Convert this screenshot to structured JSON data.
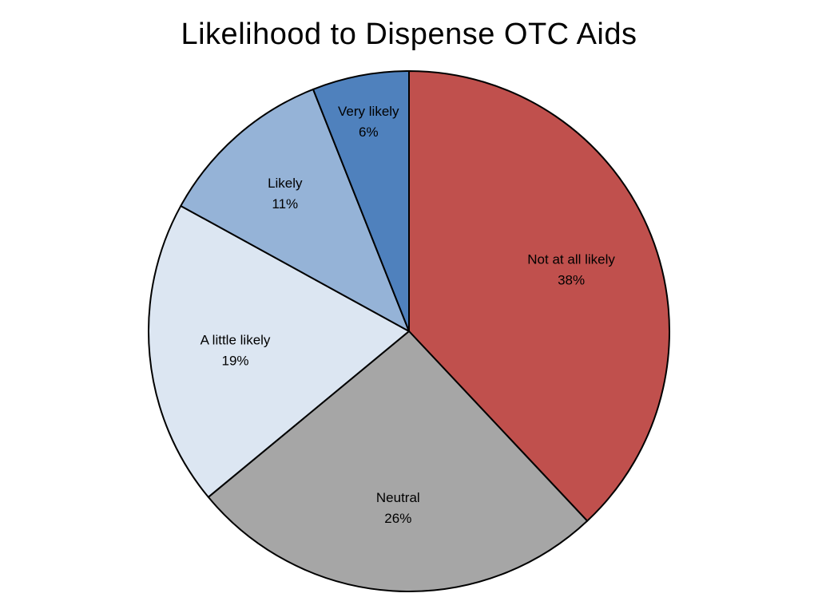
{
  "chart_data": {
    "type": "pie",
    "title": "Likelihood to Dispense OTC Aids",
    "slices": [
      {
        "label": "Not at all likely",
        "value": 38,
        "display": "38%",
        "color": "#C0504D"
      },
      {
        "label": "Neutral",
        "value": 26,
        "display": "26%",
        "color": "#A6A6A6"
      },
      {
        "label": "A little likely",
        "value": 19,
        "display": "19%",
        "color": "#DCE6F2"
      },
      {
        "label": "Likely",
        "value": 11,
        "display": "11%",
        "color": "#95B3D7"
      },
      {
        "label": "Very likely",
        "value": 6,
        "display": "6%",
        "color": "#4F81BD"
      }
    ],
    "start": "12 o'clock",
    "direction": "clockwise",
    "legend": "none",
    "data_labels": "inside"
  }
}
